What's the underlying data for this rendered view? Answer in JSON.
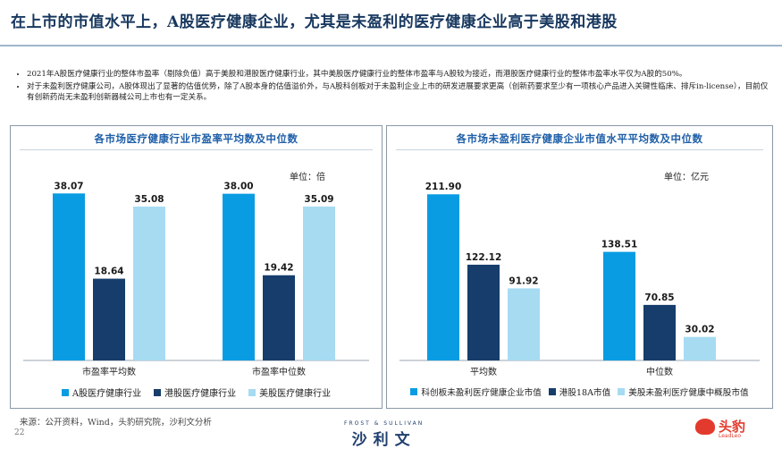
{
  "header": {
    "title": "在上市的市值水平上，A股医疗健康企业，尤其是未盈利的医疗健康企业高于美股和港股"
  },
  "bullets": [
    "2021年A股医疗健康行业的整体市盈率（剔除负值）高于美股和港股医疗健康行业，其中美股医疗健康行业的整体市盈率与A股较为接近，而港股医疗健康行业的整体市盈率水平仅为A股的50%。",
    "对于未盈利医疗健康公司，A股体现出了显著的估值优势，除了A股本身的估值溢价外，与A股科创板对于未盈利企业上市的研发进展要求更高（创新药要求至少有一项核心产品进入关键性临床、排斥in-license），目前仅有创新药尚无未盈利创新器械公司上市也有一定关系。"
  ],
  "chart_data": [
    {
      "type": "bar",
      "title": "各市场医疗健康行业市盈率平均数及中位数",
      "unit": "单位：倍",
      "categories": [
        "市盈率平均数",
        "市盈率中位数"
      ],
      "series": [
        {
          "name": "A股医疗健康行业",
          "color": "#0a9ce2",
          "values": [
            38.07,
            38.0
          ]
        },
        {
          "name": "港股医疗健康行业",
          "color": "#163d6b",
          "values": [
            18.64,
            19.42
          ]
        },
        {
          "name": "美股医疗健康行业",
          "color": "#a6dbf2",
          "values": [
            35.08,
            35.09
          ]
        }
      ],
      "ylim": [
        0,
        42
      ]
    },
    {
      "type": "bar",
      "title": "各市场未盈利医疗健康企业市值水平平均数及中位数",
      "unit": "单位：亿元",
      "categories": [
        "平均数",
        "中位数"
      ],
      "series": [
        {
          "name": "科创板未盈利医疗健康企业市值",
          "color": "#0a9ce2",
          "values": [
            211.9,
            138.51
          ]
        },
        {
          "name": "港股18A市值",
          "color": "#163d6b",
          "values": [
            122.12,
            70.85
          ]
        },
        {
          "name": "美股未盈利医疗健康中概股市值",
          "color": "#a6dbf2",
          "values": [
            91.92,
            30.02
          ]
        }
      ],
      "ylim": [
        0,
        235
      ]
    }
  ],
  "footer": {
    "source": "来源：公开资料，Wind，头豹研究院，沙利文分析",
    "page": "22",
    "logo_small": "FROST & SULLIVAN",
    "logo_big": "沙利文",
    "brand_name": "头豹",
    "brand_en": "LeadLeo"
  }
}
